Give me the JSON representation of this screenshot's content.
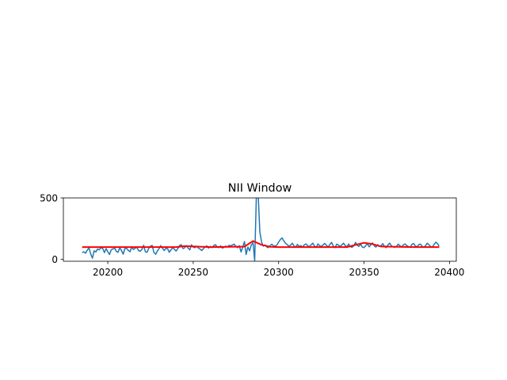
{
  "chart_data": {
    "type": "line",
    "title": "NII Window",
    "xlabel": "",
    "ylabel": "",
    "xlim": [
      20174,
      20404
    ],
    "ylim": [
      -15,
      500
    ],
    "xticks": [
      20200,
      20250,
      20300,
      20350,
      20400
    ],
    "yticks": [
      0,
      500
    ],
    "grid": false,
    "legend": "none",
    "series": [
      {
        "color": "#1f77b4",
        "x": [
          20185,
          20186,
          20187,
          20188,
          20189,
          20190,
          20191,
          20192,
          20193,
          20194,
          20195,
          20196,
          20197,
          20198,
          20199,
          20200,
          20201,
          20202,
          20203,
          20204,
          20205,
          20206,
          20207,
          20208,
          20209,
          20210,
          20211,
          20212,
          20213,
          20214,
          20215,
          20216,
          20217,
          20218,
          20219,
          20220,
          20221,
          20222,
          20223,
          20224,
          20225,
          20226,
          20227,
          20228,
          20229,
          20230,
          20231,
          20232,
          20233,
          20234,
          20235,
          20236,
          20237,
          20238,
          20239,
          20240,
          20241,
          20242,
          20243,
          20244,
          20245,
          20246,
          20247,
          20248,
          20249,
          20250,
          20251,
          20252,
          20253,
          20254,
          20255,
          20256,
          20257,
          20258,
          20259,
          20260,
          20261,
          20262,
          20263,
          20264,
          20265,
          20266,
          20267,
          20268,
          20269,
          20270,
          20271,
          20272,
          20273,
          20274,
          20275,
          20276,
          20277,
          20278,
          20279,
          20280,
          20281,
          20282,
          20283,
          20284,
          20285,
          20286,
          20287,
          20288,
          20289,
          20290,
          20291,
          20292,
          20293,
          20294,
          20295,
          20296,
          20297,
          20298,
          20299,
          20300,
          20301,
          20302,
          20303,
          20304,
          20305,
          20306,
          20307,
          20308,
          20309,
          20310,
          20311,
          20312,
          20313,
          20314,
          20315,
          20316,
          20317,
          20318,
          20319,
          20320,
          20321,
          20322,
          20323,
          20324,
          20325,
          20326,
          20327,
          20328,
          20329,
          20330,
          20331,
          20332,
          20333,
          20334,
          20335,
          20336,
          20337,
          20338,
          20339,
          20340,
          20341,
          20342,
          20343,
          20344,
          20345,
          20346,
          20347,
          20348,
          20349,
          20350,
          20351,
          20352,
          20353,
          20354,
          20355,
          20356,
          20357,
          20358,
          20359,
          20360,
          20361,
          20362,
          20363,
          20364,
          20365,
          20366,
          20367,
          20368,
          20369,
          20370,
          20371,
          20372,
          20373,
          20374,
          20375,
          20376,
          20377,
          20378,
          20379,
          20380,
          20381,
          20382,
          20383,
          20384,
          20385,
          20386,
          20387,
          20388,
          20389,
          20390,
          20391,
          20392,
          20393,
          20394
        ],
        "y": [
          55,
          62,
          50,
          75,
          95,
          45,
          10,
          70,
          60,
          85,
          78,
          95,
          90,
          55,
          88,
          62,
          40,
          78,
          85,
          92,
          65,
          58,
          95,
          72,
          42,
          88,
          90,
          74,
          62,
          101,
          80,
          92,
          98,
          72,
          66,
          82,
          115,
          62,
          58,
          90,
          108,
          114,
          56,
          42,
          68,
          88,
          112,
          92,
          72,
          90,
          88,
          58,
          78,
          96,
          82,
          68,
          88,
          112,
          120,
          88,
          95,
          112,
          92,
          78,
          118,
          100,
          95,
          108,
          92,
          84,
          72,
          88,
          102,
          110,
          92,
          106,
          96,
          112,
          120,
          102,
          96,
          110,
          92,
          98,
          108,
          102,
          114,
          110,
          118,
          124,
          105,
          95,
          112,
          60,
          100,
          145,
          40,
          100,
          70,
          118,
          135,
          -10,
          540,
          540,
          225,
          140,
          108,
          118,
          102,
          96,
          112,
          124,
          110,
          108,
          118,
          140,
          162,
          175,
          152,
          132,
          120,
          108,
          116,
          132,
          110,
          98,
          122,
          106,
          112,
          100,
          118,
          126,
          112,
          102,
          118,
          132,
          108,
          98,
          126,
          112,
          104,
          118,
          130,
          114,
          100,
          122,
          138,
          108,
          96,
          124,
          116,
          106,
          118,
          132,
          112,
          102,
          126,
          104,
          98,
          112,
          138,
          114,
          106,
          124,
          100,
          96,
          112,
          128,
          102,
          118,
          134,
          110,
          100,
          120,
          106,
          112,
          128,
          104,
          96,
          118,
          132,
          110,
          102,
          98,
          106,
          124,
          112,
          100,
          118,
          126,
          112,
          104,
          98,
          122,
          130,
          110,
          102,
          120,
          124,
          106,
          98,
          112,
          132,
          118,
          104,
          100,
          122,
          140,
          128,
          108
        ]
      },
      {
        "color": "#ff0000",
        "x": [
          20185,
          20200,
          20220,
          20240,
          20245,
          20260,
          20280,
          20285,
          20290,
          20295,
          20300,
          20320,
          20340,
          20345,
          20350,
          20355,
          20360,
          20380,
          20394
        ],
        "y": [
          100,
          100,
          100,
          100,
          108,
          100,
          104,
          150,
          118,
          103,
          100,
          100,
          100,
          118,
          135,
          125,
          105,
          100,
          100
        ]
      }
    ]
  }
}
